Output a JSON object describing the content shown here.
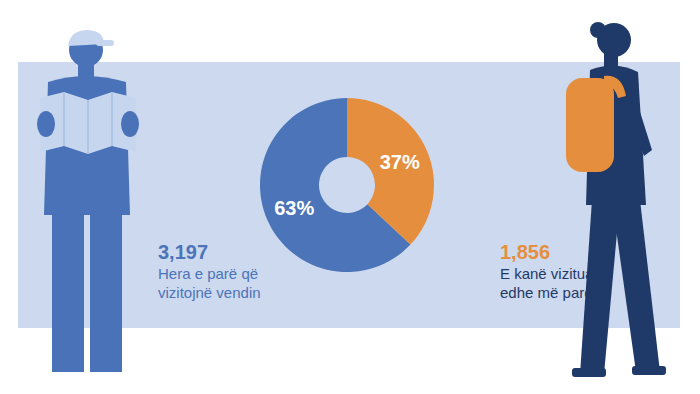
{
  "chart_data": {
    "type": "pie",
    "categories": [
      "Hera e parë që vizitojnë vendin",
      "E kanë vizituar edhe më parë"
    ],
    "values": [
      63,
      37
    ],
    "value_labels": [
      "63%",
      "37%"
    ],
    "colors": [
      "#4b74b9",
      "#e58f3e"
    ],
    "counts": [
      3197,
      1856
    ],
    "data_labels": true
  }
}
